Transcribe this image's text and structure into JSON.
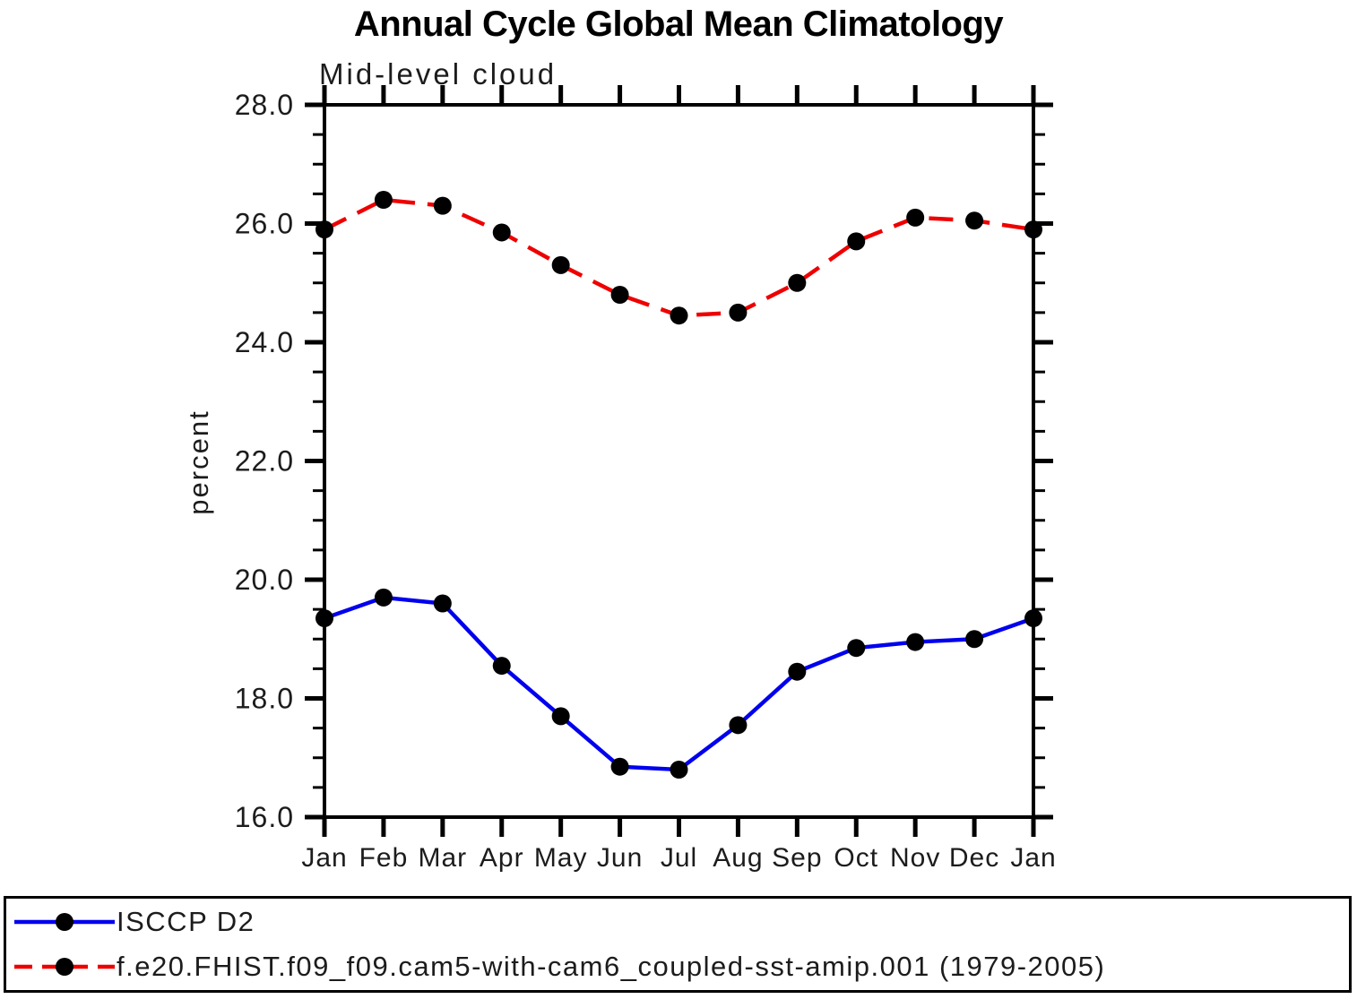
{
  "title": "Annual Cycle Global Mean Climatology",
  "subtitle": "Mid-level cloud",
  "chart_data": {
    "type": "line",
    "categories": [
      "Jan",
      "Feb",
      "Mar",
      "Apr",
      "May",
      "Jun",
      "Jul",
      "Aug",
      "Sep",
      "Oct",
      "Nov",
      "Dec",
      "Jan"
    ],
    "xlabel": "",
    "ylabel": "percent",
    "ylim": [
      16.0,
      28.0
    ],
    "ytick_interval": 2.0,
    "yminor_interval": 0.5,
    "ytick_labels": [
      "16.0",
      "18.0",
      "20.0",
      "22.0",
      "24.0",
      "26.0",
      "28.0"
    ],
    "grid": false,
    "legend_position": "bottom",
    "marker": {
      "shape": "circle",
      "color": "#000000",
      "radius": 10
    },
    "series": [
      {
        "name": "ISCCP D2",
        "color": "#0000ee",
        "line_style": "solid",
        "values": [
          19.35,
          19.7,
          19.6,
          18.55,
          17.7,
          16.85,
          16.8,
          17.55,
          18.45,
          18.85,
          18.95,
          19.0,
          19.35
        ]
      },
      {
        "name": "f.e20.FHIST.f09_f09.cam5-with-cam6_coupled-sst-amip.001 (1979-2005)",
        "color": "#ee0000",
        "line_style": "dashed",
        "values": [
          25.9,
          26.4,
          26.3,
          25.85,
          25.3,
          24.8,
          24.45,
          24.5,
          25.0,
          25.7,
          26.1,
          26.05,
          25.9
        ]
      }
    ]
  }
}
